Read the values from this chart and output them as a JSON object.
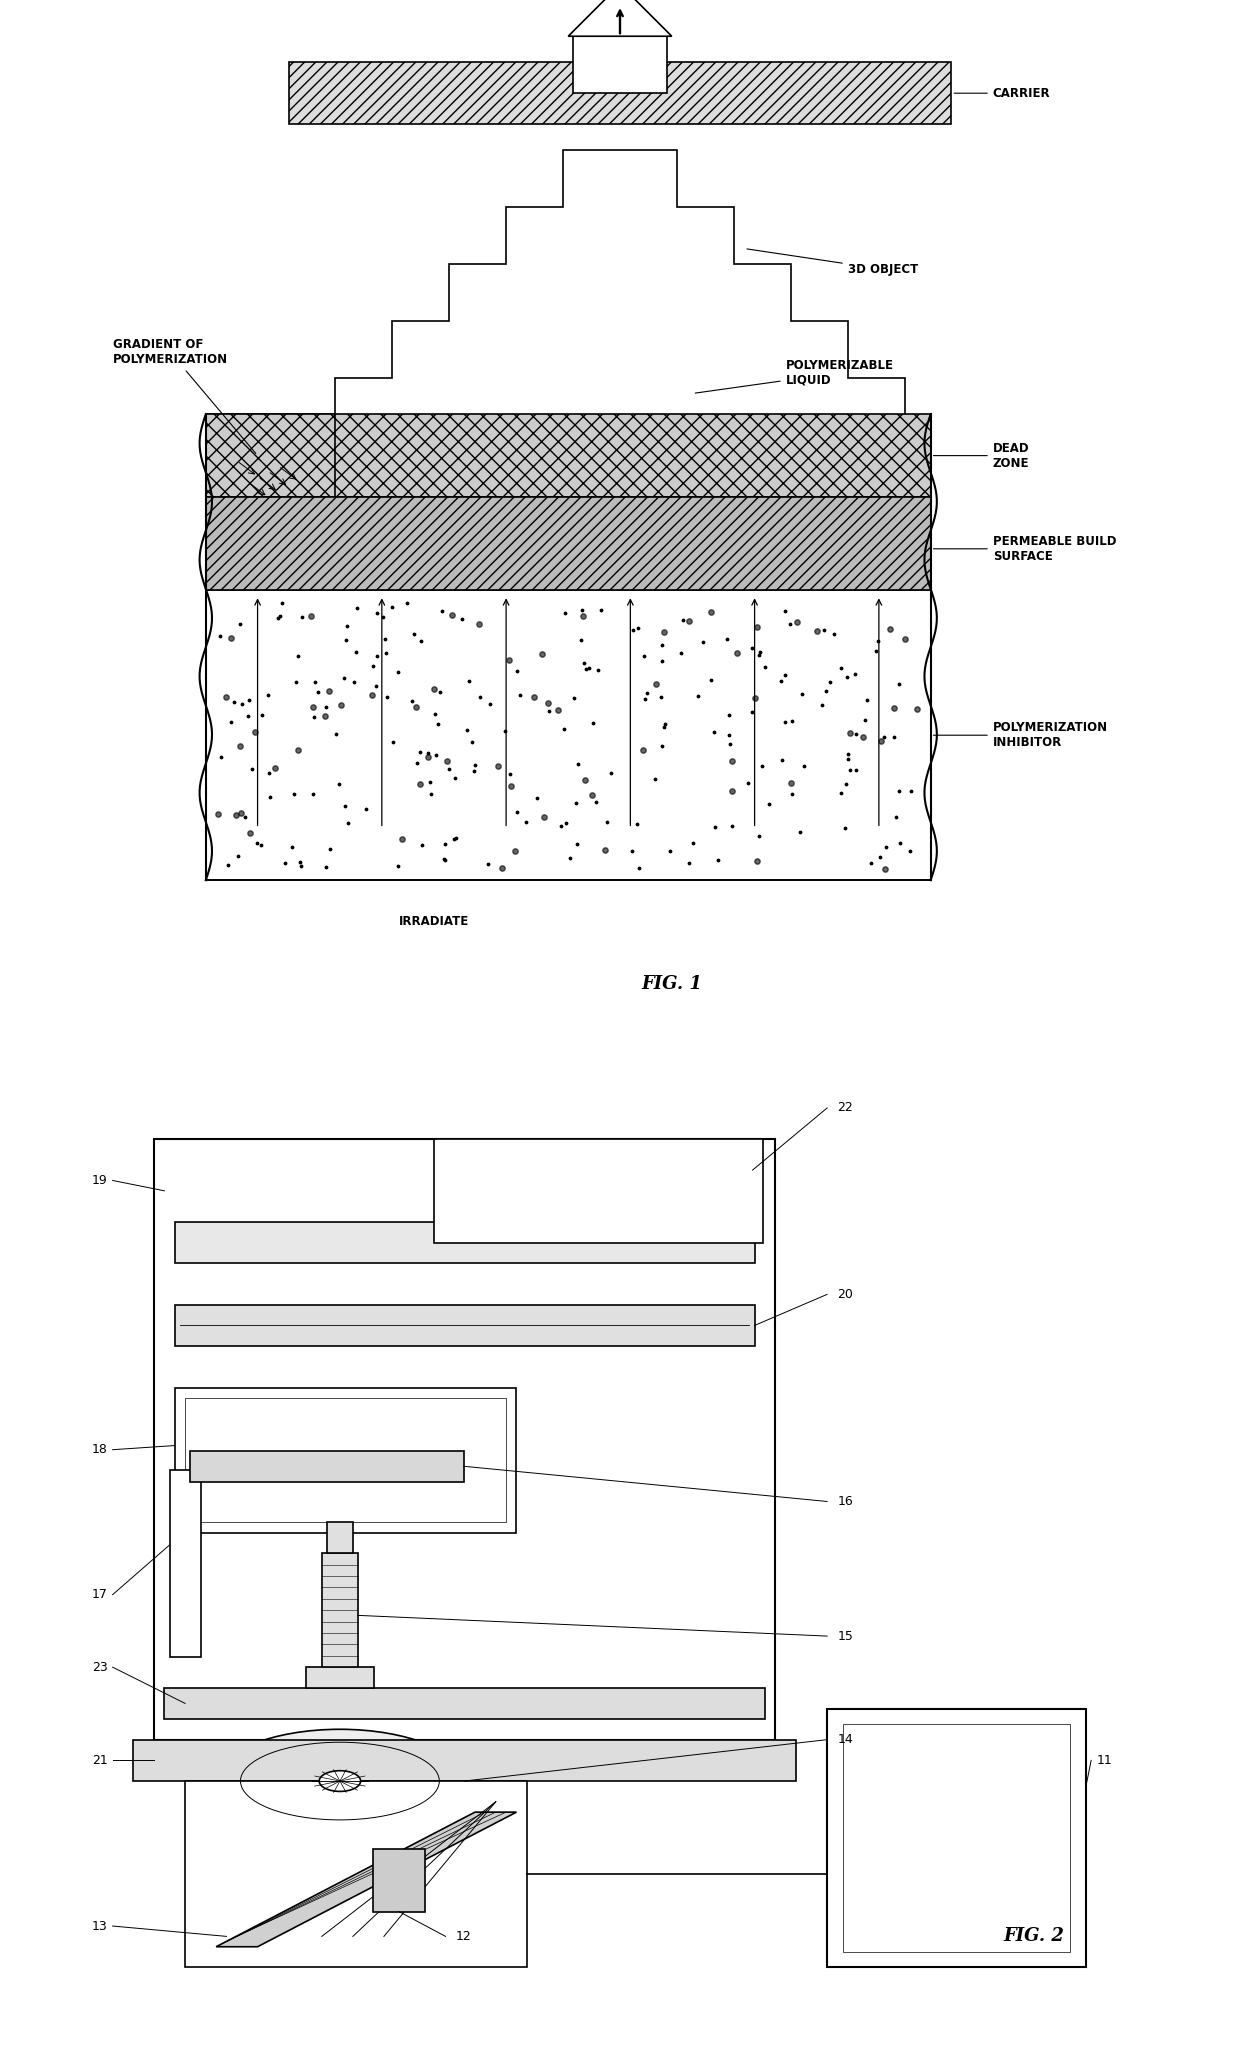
{
  "bg_color": "#ffffff",
  "line_color": "#000000",
  "fig_width": 12.4,
  "fig_height": 20.71,
  "fig1": {
    "carrier_label": "CARRIER",
    "object_3d_label": "3D OBJECT",
    "poly_liquid_label": "POLYMERIZABLE\nLIQUID",
    "dead_zone_label": "DEAD\nZONE",
    "perm_surface_label": "PERMEABLE BUILD\nSURFACE",
    "poly_inhibitor_label": "POLYMERIZATION\nINHIBITOR",
    "gradient_label": "GRADIENT OF\nPOLYMERIZATION",
    "irradiate_label": "IRRADIATE",
    "fig_label": "FIG. 1"
  },
  "fig2": {
    "fig_label": "FIG. 2"
  }
}
